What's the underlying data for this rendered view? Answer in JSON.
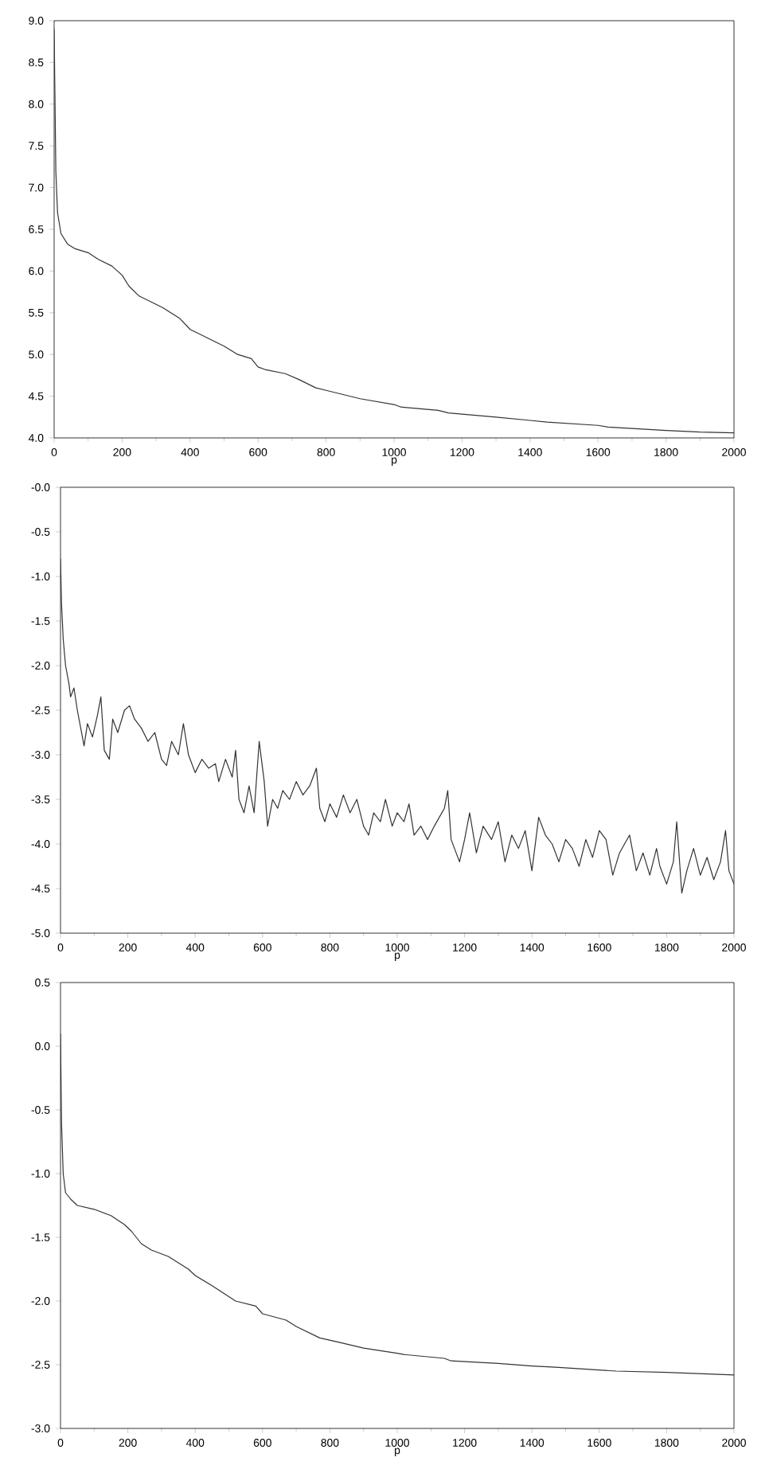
{
  "chart_data": [
    {
      "type": "line",
      "xlabel": "p",
      "xlim": [
        0,
        2000
      ],
      "ylim": [
        4,
        9
      ],
      "xticks": [
        0,
        200,
        400,
        600,
        800,
        1000,
        1200,
        1400,
        1600,
        1800,
        2000
      ],
      "yticks": [
        {
          "value": 4,
          "label": "4.0"
        },
        {
          "value": 4.5,
          "label": "4.5"
        },
        {
          "value": 5,
          "label": "5.0"
        },
        {
          "value": 5.5,
          "label": "5.5"
        },
        {
          "value": 6,
          "label": "6.0"
        },
        {
          "value": 6.5,
          "label": "6.5"
        },
        {
          "value": 7,
          "label": "7.0"
        },
        {
          "value": 7.5,
          "label": "7.5"
        },
        {
          "value": 8,
          "label": "8.0"
        },
        {
          "value": 8.5,
          "label": "8.5"
        },
        {
          "value": 9,
          "label": "9.0"
        }
      ],
      "color": "#333333",
      "x": [
        0,
        5,
        10,
        20,
        40,
        60,
        100,
        130,
        170,
        200,
        220,
        250,
        300,
        320,
        370,
        400,
        450,
        500,
        540,
        580,
        600,
        620,
        680,
        720,
        770,
        800,
        850,
        900,
        1000,
        1020,
        1130,
        1160,
        1300,
        1400,
        1450,
        1600,
        1630,
        1800,
        1900,
        2000
      ],
      "values": [
        8.9,
        7.2,
        6.7,
        6.45,
        6.32,
        6.27,
        6.22,
        6.14,
        6.06,
        5.95,
        5.82,
        5.7,
        5.6,
        5.56,
        5.43,
        5.3,
        5.2,
        5.1,
        5.0,
        4.95,
        4.85,
        4.82,
        4.77,
        4.7,
        4.6,
        4.57,
        4.52,
        4.47,
        4.4,
        4.37,
        4.33,
        4.3,
        4.25,
        4.21,
        4.19,
        4.15,
        4.13,
        4.09,
        4.07,
        4.06
      ]
    },
    {
      "type": "line",
      "xlabel": "p",
      "xlim": [
        0,
        2000
      ],
      "ylim": [
        -5,
        0
      ],
      "xticks": [
        0,
        200,
        400,
        600,
        800,
        1000,
        1200,
        1400,
        1600,
        1800,
        2000
      ],
      "yticks": [
        {
          "value": -5,
          "label": "-5.0"
        },
        {
          "value": -4.5,
          "label": "-4.5"
        },
        {
          "value": -4,
          "label": "-4.0"
        },
        {
          "value": -3.5,
          "label": "-3.5"
        },
        {
          "value": -3,
          "label": "-3.0"
        },
        {
          "value": -2.5,
          "label": "-2.5"
        },
        {
          "value": -2,
          "label": "-2.0"
        },
        {
          "value": -1.5,
          "label": "-1.5"
        },
        {
          "value": -1,
          "label": "-1.0"
        },
        {
          "value": -0.5,
          "label": "-0.5"
        },
        {
          "value": 0,
          "label": "-0.0"
        }
      ],
      "color": "#333333",
      "x": [
        0,
        3,
        8,
        15,
        25,
        30,
        40,
        50,
        60,
        70,
        80,
        95,
        110,
        120,
        130,
        145,
        155,
        170,
        190,
        205,
        220,
        240,
        260,
        280,
        300,
        315,
        330,
        350,
        365,
        380,
        400,
        420,
        440,
        460,
        470,
        490,
        510,
        520,
        530,
        545,
        560,
        575,
        590,
        605,
        615,
        630,
        645,
        660,
        680,
        700,
        720,
        740,
        760,
        770,
        785,
        800,
        820,
        840,
        860,
        880,
        900,
        915,
        930,
        950,
        965,
        985,
        1000,
        1020,
        1035,
        1050,
        1070,
        1090,
        1110,
        1140,
        1150,
        1160,
        1185,
        1200,
        1215,
        1235,
        1255,
        1280,
        1300,
        1320,
        1340,
        1360,
        1380,
        1400,
        1420,
        1440,
        1460,
        1480,
        1500,
        1520,
        1540,
        1560,
        1580,
        1600,
        1620,
        1640,
        1660,
        1690,
        1710,
        1730,
        1750,
        1770,
        1780,
        1800,
        1820,
        1830,
        1845,
        1860,
        1880,
        1900,
        1920,
        1940,
        1960,
        1975,
        1985,
        2000
      ],
      "values": [
        -0.8,
        -1.3,
        -1.7,
        -2.0,
        -2.2,
        -2.35,
        -2.25,
        -2.5,
        -2.7,
        -2.9,
        -2.65,
        -2.8,
        -2.55,
        -2.35,
        -2.95,
        -3.05,
        -2.6,
        -2.75,
        -2.5,
        -2.45,
        -2.6,
        -2.7,
        -2.85,
        -2.75,
        -3.05,
        -3.12,
        -2.85,
        -3.0,
        -2.65,
        -3.0,
        -3.2,
        -3.05,
        -3.15,
        -3.1,
        -3.3,
        -3.05,
        -3.25,
        -2.95,
        -3.5,
        -3.65,
        -3.35,
        -3.65,
        -2.85,
        -3.3,
        -3.8,
        -3.5,
        -3.6,
        -3.4,
        -3.5,
        -3.3,
        -3.45,
        -3.35,
        -3.15,
        -3.6,
        -3.75,
        -3.55,
        -3.7,
        -3.45,
        -3.65,
        -3.5,
        -3.8,
        -3.9,
        -3.65,
        -3.75,
        -3.5,
        -3.8,
        -3.65,
        -3.75,
        -3.55,
        -3.9,
        -3.8,
        -3.95,
        -3.8,
        -3.6,
        -3.4,
        -3.95,
        -4.2,
        -3.95,
        -3.65,
        -4.1,
        -3.8,
        -3.95,
        -3.75,
        -4.2,
        -3.9,
        -4.05,
        -3.85,
        -4.3,
        -3.7,
        -3.9,
        -4.0,
        -4.2,
        -3.95,
        -4.05,
        -4.25,
        -3.95,
        -4.15,
        -3.85,
        -3.95,
        -4.35,
        -4.1,
        -3.9,
        -4.3,
        -4.1,
        -4.35,
        -4.05,
        -4.25,
        -4.45,
        -4.2,
        -3.75,
        -4.55,
        -4.3,
        -4.05,
        -4.35,
        -4.15,
        -4.4,
        -4.2,
        -3.85,
        -4.3,
        -4.45
      ]
    },
    {
      "type": "line",
      "xlabel": "p",
      "xlim": [
        0,
        2000
      ],
      "ylim": [
        -3,
        0.5
      ],
      "xticks": [
        0,
        200,
        400,
        600,
        800,
        1000,
        1200,
        1400,
        1600,
        1800,
        2000
      ],
      "yticks": [
        {
          "value": -3,
          "label": "-3.0"
        },
        {
          "value": -2.5,
          "label": "-2.5"
        },
        {
          "value": -2,
          "label": "-2.0"
        },
        {
          "value": -1.5,
          "label": "-1.5"
        },
        {
          "value": -1,
          "label": "-1.0"
        },
        {
          "value": -0.5,
          "label": "-0.5"
        },
        {
          "value": 0,
          "label": "0.0"
        },
        {
          "value": 0.5,
          "label": "0.5"
        }
      ],
      "color": "#333333",
      "x": [
        0,
        3,
        8,
        15,
        30,
        50,
        100,
        150,
        190,
        210,
        240,
        270,
        320,
        380,
        400,
        450,
        520,
        580,
        600,
        670,
        700,
        770,
        820,
        900,
        1000,
        1020,
        1140,
        1160,
        1300,
        1400,
        1470,
        1650,
        1800,
        2000
      ],
      "values": [
        0.1,
        -0.6,
        -1.0,
        -1.15,
        -1.2,
        -1.25,
        -1.28,
        -1.33,
        -1.4,
        -1.45,
        -1.55,
        -1.6,
        -1.65,
        -1.75,
        -1.8,
        -1.88,
        -2.0,
        -2.04,
        -2.1,
        -2.15,
        -2.2,
        -2.29,
        -2.32,
        -2.37,
        -2.41,
        -2.42,
        -2.45,
        -2.47,
        -2.49,
        -2.51,
        -2.52,
        -2.55,
        -2.56,
        -2.58
      ]
    }
  ]
}
